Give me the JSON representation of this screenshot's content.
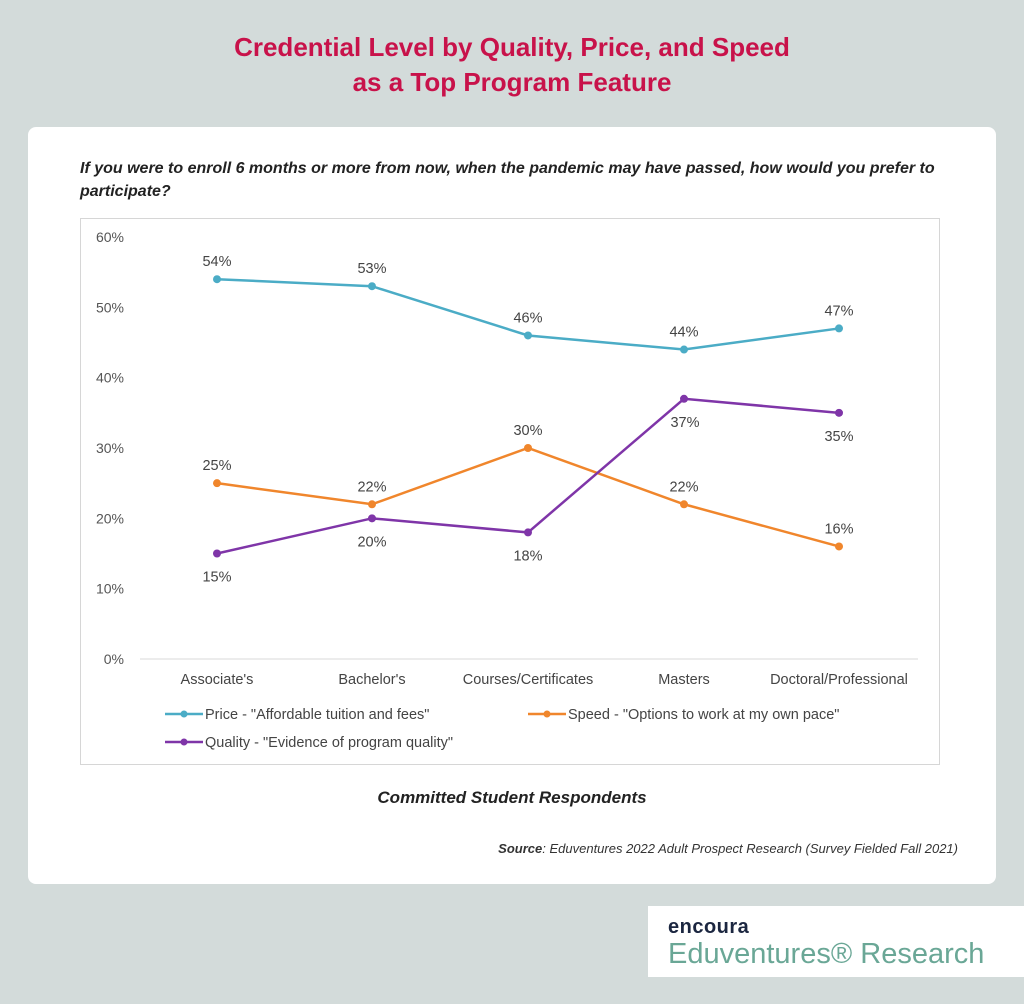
{
  "title_line1": "Credential Level by Quality, Price, and Speed",
  "title_line2": "as a Top Program Feature",
  "question": "If you were to enroll 6 months or more from now, when the pandemic may have passed, how would you prefer to participate?",
  "caption": "Committed Student Respondents",
  "source_label": "Source",
  "source_text": ": Eduventures 2022 Adult Prospect Research (Survey Fielded Fall 2021)",
  "logo": {
    "brand": "encoura",
    "product": "Eduventures® Research"
  },
  "chart_data": {
    "type": "line",
    "categories": [
      "Associate's",
      "Bachelor's",
      "Courses/Certificates",
      "Masters",
      "Doctoral/Professional"
    ],
    "ylim": [
      0,
      60
    ],
    "yticks": [
      "0%",
      "10%",
      "20%",
      "30%",
      "40%",
      "50%",
      "60%"
    ],
    "grid": false,
    "legend_position": "bottom",
    "series": [
      {
        "name": "Price - \"Affordable tuition and fees\"",
        "color": "#4bacc6",
        "values": [
          54,
          53,
          46,
          44,
          47
        ],
        "labels": [
          "54%",
          "53%",
          "46%",
          "44%",
          "47%"
        ],
        "label_pos": [
          "above",
          "above",
          "above",
          "above",
          "above"
        ]
      },
      {
        "name": "Speed - \"Options to work at my own pace\"",
        "color": "#f0862c",
        "values": [
          25,
          22,
          30,
          22,
          16
        ],
        "labels": [
          "25%",
          "22%",
          "30%",
          "22%",
          "16%"
        ],
        "label_pos": [
          "above",
          "above",
          "above",
          "above",
          "above"
        ]
      },
      {
        "name": "Quality - \"Evidence of program quality\"",
        "color": "#7f35a8",
        "values": [
          15,
          20,
          18,
          37,
          35
        ],
        "labels": [
          "15%",
          "20%",
          "18%",
          "37%",
          "35%"
        ],
        "label_pos": [
          "below",
          "below",
          "below",
          "below",
          "below"
        ]
      }
    ]
  }
}
